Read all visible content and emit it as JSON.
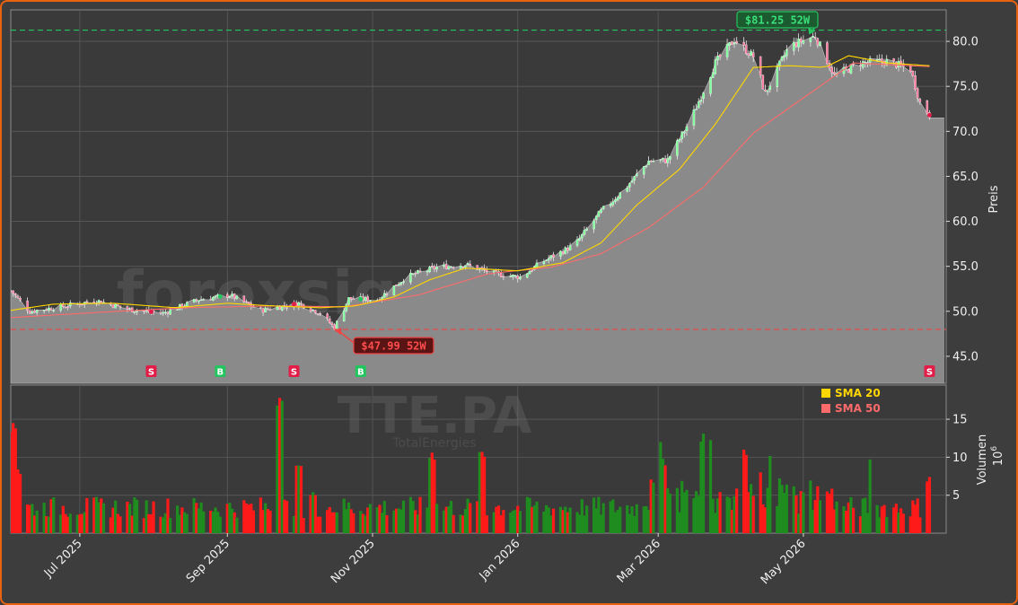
{
  "chart_data": {
    "type": "candlestick",
    "ticker": "TTE.PA",
    "company": "TotalEnergies",
    "watermark": "forexsignale.trade",
    "ylabel_price": "Preis",
    "ylabel_volume": "Volumen",
    "volume_exponent_label": "10",
    "volume_exponent_sup": "6",
    "price_ylim": [
      42.0,
      83.5
    ],
    "volume_ylim": [
      0,
      19.5
    ],
    "price_yticks": [
      "45.0",
      "50.0",
      "55.0",
      "60.0",
      "65.0",
      "70.0",
      "75.0",
      "80.0"
    ],
    "volume_yticks": [
      "5",
      "10",
      "15"
    ],
    "x_start": "2025-06-02",
    "x_end": "2026-06-30",
    "xticks": [
      {
        "date": "2025-07-01",
        "label": "Jul 2025"
      },
      {
        "date": "2025-09-01",
        "label": "Sep 2025"
      },
      {
        "date": "2025-11-01",
        "label": "Nov 2025"
      },
      {
        "date": "2026-01-01",
        "label": "Jan 2026"
      },
      {
        "date": "2026-03-01",
        "label": "Mar 2026"
      },
      {
        "date": "2026-05-01",
        "label": "May 2026"
      }
    ],
    "high_52w": {
      "value": 81.25,
      "label": "$81.25 52W",
      "date": "2026-05-06"
    },
    "low_52w": {
      "value": 47.99,
      "label": "$47.99 52W",
      "date": "2025-10-16"
    },
    "legend": [
      {
        "name": "SMA 20",
        "color": "#ffd700"
      },
      {
        "name": "SMA 50",
        "color": "#ff6b6b"
      }
    ],
    "signals": [
      {
        "date": "2025-07-31",
        "type": "S"
      },
      {
        "date": "2025-08-29",
        "type": "B"
      },
      {
        "date": "2025-09-29",
        "type": "S"
      },
      {
        "date": "2025-10-27",
        "type": "B"
      },
      {
        "date": "2026-06-23",
        "type": "S"
      }
    ],
    "price_anchors": [
      [
        "2025-06-02",
        52.3
      ],
      [
        "2025-06-10",
        50.0
      ],
      [
        "2025-06-25",
        50.6
      ],
      [
        "2025-07-08",
        51.2
      ],
      [
        "2025-07-22",
        50.2
      ],
      [
        "2025-08-05",
        49.8
      ],
      [
        "2025-08-20",
        51.3
      ],
      [
        "2025-09-02",
        51.8
      ],
      [
        "2025-09-15",
        50.1
      ],
      [
        "2025-10-01",
        50.9
      ],
      [
        "2025-10-10",
        49.8
      ],
      [
        "2025-10-16",
        48.2
      ],
      [
        "2025-10-22",
        51.4
      ],
      [
        "2025-11-03",
        51.3
      ],
      [
        "2025-11-15",
        53.8
      ],
      [
        "2025-11-28",
        54.9
      ],
      [
        "2025-12-10",
        55.2
      ],
      [
        "2025-12-22",
        54.2
      ],
      [
        "2026-01-02",
        53.8
      ],
      [
        "2026-01-12",
        55.6
      ],
      [
        "2026-01-25",
        57.4
      ],
      [
        "2026-02-05",
        61.1
      ],
      [
        "2026-02-15",
        63.6
      ],
      [
        "2026-02-25",
        66.7
      ],
      [
        "2026-03-05",
        66.8
      ],
      [
        "2026-03-15",
        71.5
      ],
      [
        "2026-03-25",
        77.6
      ],
      [
        "2026-04-02",
        80.2
      ],
      [
        "2026-04-10",
        78.3
      ],
      [
        "2026-04-15",
        74.2
      ],
      [
        "2026-04-25",
        79.5
      ],
      [
        "2026-05-06",
        80.6
      ],
      [
        "2026-05-14",
        76.2
      ],
      [
        "2026-05-25",
        77.6
      ],
      [
        "2026-06-05",
        77.8
      ],
      [
        "2026-06-15",
        76.9
      ],
      [
        "2026-06-19",
        73.2
      ],
      [
        "2026-06-23",
        71.8
      ]
    ],
    "sma20_anchors": [
      [
        "2025-06-02",
        50.1
      ],
      [
        "2025-06-20",
        50.8
      ],
      [
        "2025-07-15",
        50.9
      ],
      [
        "2025-08-10",
        50.4
      ],
      [
        "2025-09-01",
        50.9
      ],
      [
        "2025-09-20",
        50.6
      ],
      [
        "2025-10-10",
        50.4
      ],
      [
        "2025-10-25",
        50.6
      ],
      [
        "2025-11-10",
        51.6
      ],
      [
        "2025-11-25",
        53.5
      ],
      [
        "2025-12-10",
        54.8
      ],
      [
        "2026-01-01",
        54.5
      ],
      [
        "2026-01-20",
        55.4
      ],
      [
        "2026-02-05",
        57.6
      ],
      [
        "2026-02-20",
        61.8
      ],
      [
        "2026-03-10",
        65.8
      ],
      [
        "2026-03-25",
        70.8
      ],
      [
        "2026-04-10",
        77.1
      ],
      [
        "2026-04-25",
        77.3
      ],
      [
        "2026-05-10",
        77.1
      ],
      [
        "2026-05-20",
        78.4
      ],
      [
        "2026-06-05",
        77.6
      ],
      [
        "2026-06-23",
        77.3
      ]
    ],
    "sma50_anchors": [
      [
        "2025-06-02",
        49.3
      ],
      [
        "2025-07-10",
        49.9
      ],
      [
        "2025-08-15",
        50.4
      ],
      [
        "2025-09-20",
        50.6
      ],
      [
        "2025-10-20",
        50.5
      ],
      [
        "2025-11-20",
        51.8
      ],
      [
        "2025-12-20",
        54.2
      ],
      [
        "2026-01-15",
        54.9
      ],
      [
        "2026-02-05",
        56.4
      ],
      [
        "2026-02-25",
        59.3
      ],
      [
        "2026-03-20",
        63.8
      ],
      [
        "2026-04-10",
        69.8
      ],
      [
        "2026-04-25",
        72.6
      ],
      [
        "2026-05-10",
        75.4
      ],
      [
        "2026-05-22",
        77.6
      ],
      [
        "2026-06-23",
        77.2
      ]
    ],
    "volume_spikes": [
      [
        "2025-06-03",
        14.5
      ],
      [
        "2025-06-05",
        8.4
      ],
      [
        "2025-09-23",
        17.8
      ],
      [
        "2025-10-01",
        8.9
      ],
      [
        "2025-10-07",
        5.4
      ],
      [
        "2025-11-26",
        10.6
      ],
      [
        "2025-12-17",
        10.7
      ],
      [
        "2026-03-01",
        12.5
      ],
      [
        "2026-03-03",
        9.8
      ],
      [
        "2026-03-20",
        13.1
      ],
      [
        "2026-03-22",
        12.9
      ],
      [
        "2026-04-06",
        11.0
      ],
      [
        "2026-04-18",
        10.3
      ],
      [
        "2026-05-30",
        10.6
      ],
      [
        "2026-06-23",
        7.4
      ]
    ]
  }
}
